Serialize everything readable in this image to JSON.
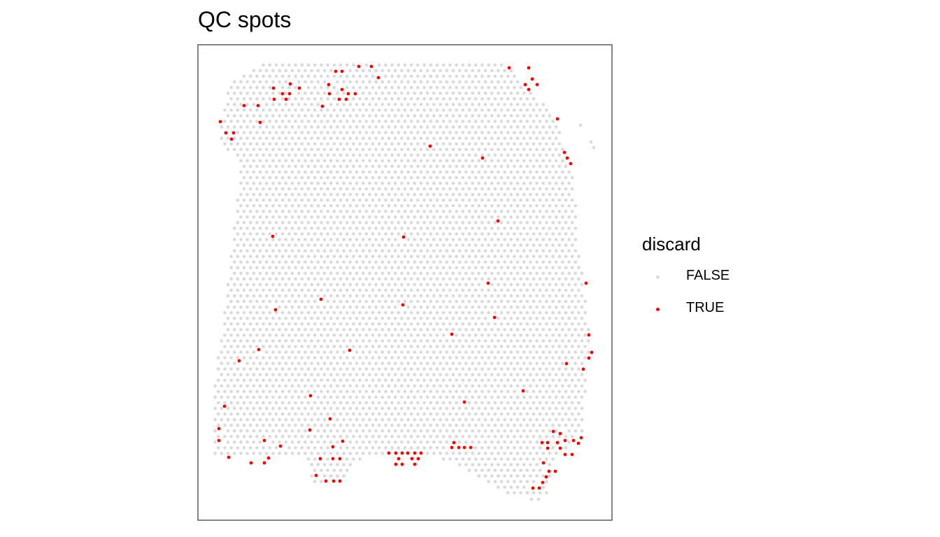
{
  "chart_data": {
    "type": "scatter",
    "title": "QC spots",
    "xlabel": "",
    "ylabel": "",
    "grid": false,
    "legend": {
      "title": "discard",
      "placement": "right",
      "entries": [
        {
          "label": "FALSE",
          "color": "#d9d9d9"
        },
        {
          "label": "TRUE",
          "color": "#ff0000"
        }
      ]
    },
    "series": [
      {
        "name": "FALSE",
        "color": "#d9d9d9",
        "description_rows": "hexagonal grid of spots covering the tissue region (~75 columns x ~78 rows)"
      },
      {
        "name": "TRUE",
        "color": "#ff0000",
        "points": [
          [
            513,
            95
          ],
          [
            531,
            95
          ],
          [
            728,
            97
          ],
          [
            480,
            102
          ],
          [
            489,
            102
          ],
          [
            756,
            97
          ],
          [
            541,
            111
          ],
          [
            761,
            113
          ],
          [
            470,
            121
          ],
          [
            751,
            121
          ],
          [
            768,
            121
          ],
          [
            415,
            120
          ],
          [
            391,
            126
          ],
          [
            428,
            126
          ],
          [
            756,
            128
          ],
          [
            489,
            128
          ],
          [
            404,
            134
          ],
          [
            414,
            134
          ],
          [
            471,
            134
          ],
          [
            498,
            134
          ],
          [
            508,
            134
          ],
          [
            392,
            142
          ],
          [
            485,
            142
          ],
          [
            495,
            142
          ],
          [
            409,
            142
          ],
          [
            349,
            151
          ],
          [
            369,
            151
          ],
          [
            461,
            152
          ],
          [
            797,
            170
          ],
          [
            315,
            174
          ],
          [
            372,
            175
          ],
          [
            323,
            190
          ],
          [
            334,
            190
          ],
          [
            331,
            199
          ],
          [
            615,
            209
          ],
          [
            807,
            218
          ],
          [
            811,
            226
          ],
          [
            690,
            226
          ],
          [
            816,
            234
          ],
          [
            712,
            316
          ],
          [
            390,
            338
          ],
          [
            577,
            339
          ],
          [
            838,
            405
          ],
          [
            698,
            405
          ],
          [
            459,
            428
          ],
          [
            576,
            436
          ],
          [
            394,
            443
          ],
          [
            707,
            454
          ],
          [
            646,
            478
          ],
          [
            842,
            479
          ],
          [
            370,
            500
          ],
          [
            500,
            501
          ],
          [
            846,
            504
          ],
          [
            842,
            512
          ],
          [
            342,
            516
          ],
          [
            810,
            520
          ],
          [
            834,
            528
          ],
          [
            748,
            559
          ],
          [
            444,
            566
          ],
          [
            664,
            575
          ],
          [
            321,
            581
          ],
          [
            472,
            599
          ],
          [
            313,
            613
          ],
          [
            443,
            615
          ],
          [
            791,
            617
          ],
          [
            801,
            620
          ],
          [
            808,
            630
          ],
          [
            820,
            630
          ],
          [
            831,
            626
          ],
          [
            313,
            630
          ],
          [
            378,
            630
          ],
          [
            490,
            631
          ],
          [
            775,
            633
          ],
          [
            783,
            633
          ],
          [
            797,
            633
          ],
          [
            827,
            634
          ],
          [
            476,
            639
          ],
          [
            401,
            638
          ],
          [
            649,
            633
          ],
          [
            646,
            640
          ],
          [
            656,
            640
          ],
          [
            664,
            640
          ],
          [
            673,
            640
          ],
          [
            556,
            648
          ],
          [
            566,
            648
          ],
          [
            575,
            648
          ],
          [
            583,
            648
          ],
          [
            593,
            648
          ],
          [
            602,
            648
          ],
          [
            783,
            641
          ],
          [
            801,
            641
          ],
          [
            808,
            650
          ],
          [
            818,
            650
          ],
          [
            327,
            654
          ],
          [
            384,
            655
          ],
          [
            458,
            656
          ],
          [
            476,
            656
          ],
          [
            486,
            656
          ],
          [
            570,
            656
          ],
          [
            589,
            656
          ],
          [
            598,
            656
          ],
          [
            359,
            662
          ],
          [
            378,
            662
          ],
          [
            566,
            664
          ],
          [
            575,
            664
          ],
          [
            593,
            664
          ],
          [
            777,
            662
          ],
          [
            785,
            674
          ],
          [
            794,
            674
          ],
          [
            781,
            682
          ],
          [
            452,
            680
          ],
          [
            466,
            688
          ],
          [
            477,
            688
          ],
          [
            486,
            688
          ],
          [
            776,
            690
          ],
          [
            762,
            698
          ],
          [
            771,
            698
          ]
        ]
      }
    ]
  }
}
